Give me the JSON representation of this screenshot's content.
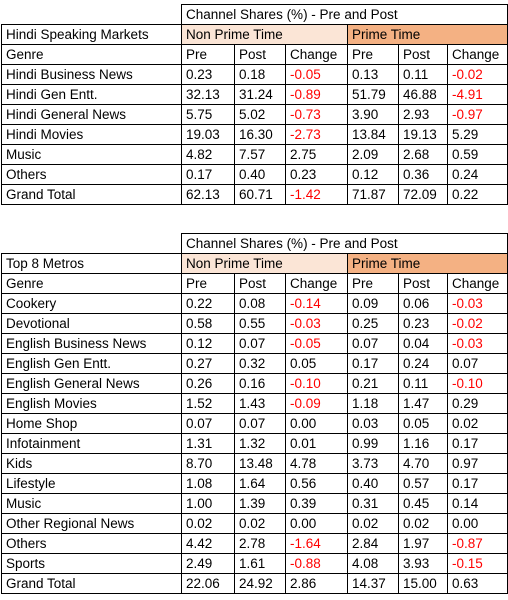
{
  "hindi": {
    "title": "Channel Shares (%) - Pre and Post",
    "market_label": "Hindi Speaking Markets",
    "non_prime_label": "Non Prime Time",
    "prime_label": "Prime Time",
    "columns": [
      "Genre",
      "Pre",
      "Post",
      "Change",
      "Pre",
      "Post",
      "Change"
    ],
    "rows": [
      [
        "Hindi Business News",
        "0.23",
        "0.18",
        "-0.05",
        "0.13",
        "0.11",
        "-0.02"
      ],
      [
        "Hindi Gen Entt.",
        "32.13",
        "31.24",
        "-0.89",
        "51.79",
        "46.88",
        "-4.91"
      ],
      [
        "Hindi General News",
        "5.75",
        "5.02",
        "-0.73",
        "3.90",
        "2.93",
        "-0.97"
      ],
      [
        "Hindi Movies",
        "19.03",
        "16.30",
        "-2.73",
        "13.84",
        "19.13",
        "5.29"
      ],
      [
        "Music",
        "4.82",
        "7.57",
        "2.75",
        "2.09",
        "2.68",
        "0.59"
      ],
      [
        "Others",
        "0.17",
        "0.40",
        "0.23",
        "0.12",
        "0.36",
        "0.24"
      ],
      [
        "Grand Total",
        "62.13",
        "60.71",
        "-1.42",
        "71.87",
        "72.09",
        "0.22"
      ]
    ]
  },
  "metros": {
    "title": "Channel Shares (%) - Pre and Post",
    "market_label": "Top 8 Metros",
    "non_prime_label": "Non Prime Time",
    "prime_label": "Prime Time",
    "columns": [
      "Genre",
      "Pre",
      "Post",
      "Change",
      "Pre",
      "Post",
      "Change"
    ],
    "rows": [
      [
        "Cookery",
        "0.22",
        "0.08",
        "-0.14",
        "0.09",
        "0.06",
        "-0.03"
      ],
      [
        "Devotional",
        "0.58",
        "0.55",
        "-0.03",
        "0.25",
        "0.23",
        "-0.02"
      ],
      [
        "English Business News",
        "0.12",
        "0.07",
        "-0.05",
        "0.07",
        "0.04",
        "-0.03"
      ],
      [
        "English Gen Entt.",
        "0.27",
        "0.32",
        "0.05",
        "0.17",
        "0.24",
        "0.07"
      ],
      [
        "English General News",
        "0.26",
        "0.16",
        "-0.10",
        "0.21",
        "0.11",
        "-0.10"
      ],
      [
        "English Movies",
        "1.52",
        "1.43",
        "-0.09",
        "1.18",
        "1.47",
        "0.29"
      ],
      [
        "Home Shop",
        "0.07",
        "0.07",
        "0.00",
        "0.03",
        "0.05",
        "0.02"
      ],
      [
        "Infotainment",
        "1.31",
        "1.32",
        "0.01",
        "0.99",
        "1.16",
        "0.17"
      ],
      [
        "Kids",
        "8.70",
        "13.48",
        "4.78",
        "3.73",
        "4.70",
        "0.97"
      ],
      [
        "Lifestyle",
        "1.08",
        "1.64",
        "0.56",
        "0.40",
        "0.57",
        "0.17"
      ],
      [
        "Music",
        "1.00",
        "1.39",
        "0.39",
        "0.31",
        "0.45",
        "0.14"
      ],
      [
        "Other Regional News",
        "0.02",
        "0.02",
        "0.00",
        "0.02",
        "0.02",
        "0.00"
      ],
      [
        "Others",
        "4.42",
        "2.78",
        "-1.64",
        "2.84",
        "1.97",
        "-0.87"
      ],
      [
        "Sports",
        "2.49",
        "1.61",
        "-0.88",
        "4.08",
        "3.93",
        "-0.15"
      ],
      [
        "Grand Total",
        "22.06",
        "24.92",
        "2.86",
        "14.37",
        "15.00",
        "0.63"
      ]
    ]
  },
  "colors": {
    "negative": "#ff0000",
    "non_prime_header": "#fbe5d6",
    "prime_header": "#f4b183"
  }
}
